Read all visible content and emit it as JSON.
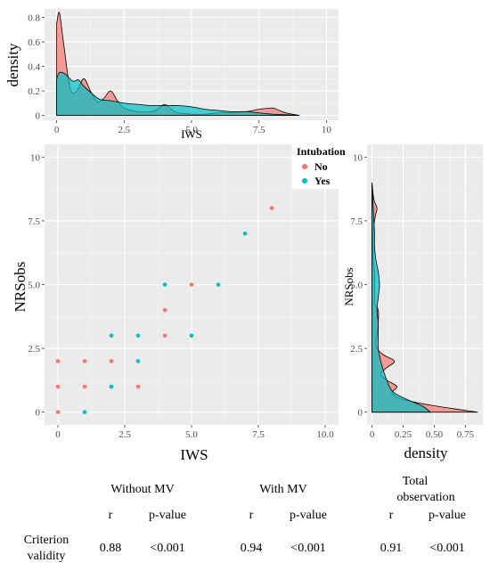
{
  "chart_data": [
    {
      "type": "area",
      "panel": "top-density",
      "xlabel": "IWS",
      "ylabel": "density",
      "xlim": [
        0,
        10
      ],
      "ylim": [
        0,
        0.85
      ],
      "xticks": [
        "0",
        "2.5",
        "5.0",
        "7.5",
        "10"
      ],
      "yticks": [
        "0",
        "0.2",
        "0.4",
        "0.6",
        "0.8"
      ],
      "grid": true,
      "series": [
        {
          "key": "No",
          "color": "#F8766D",
          "x": [
            0,
            0.1,
            0.25,
            0.5,
            0.75,
            1.0,
            1.25,
            1.5,
            1.75,
            2.0,
            2.25,
            2.5,
            3.0,
            3.5,
            3.75,
            4.0,
            4.25,
            4.5,
            5.0,
            5.5,
            6.0,
            7.0,
            7.5,
            8.0,
            8.25,
            8.5,
            9.0
          ],
          "y": [
            0.75,
            0.84,
            0.6,
            0.22,
            0.2,
            0.3,
            0.2,
            0.11,
            0.14,
            0.2,
            0.12,
            0.06,
            0.03,
            0.03,
            0.05,
            0.09,
            0.05,
            0.02,
            0.01,
            0.01,
            0.02,
            0.03,
            0.05,
            0.06,
            0.04,
            0.02,
            0
          ]
        },
        {
          "key": "Yes",
          "color": "#00BFC4",
          "x": [
            0,
            0.1,
            0.3,
            0.6,
            0.8,
            1.0,
            1.3,
            1.6,
            2.0,
            2.5,
            3.0,
            3.5,
            4.0,
            4.5,
            5.0,
            5.5,
            6.0,
            6.5,
            7.0,
            7.5,
            8.0,
            8.5,
            9.0
          ],
          "y": [
            0.3,
            0.35,
            0.34,
            0.28,
            0.29,
            0.24,
            0.18,
            0.13,
            0.12,
            0.1,
            0.09,
            0.08,
            0.08,
            0.08,
            0.07,
            0.05,
            0.04,
            0.03,
            0.03,
            0.02,
            0.01,
            0.005,
            0
          ]
        }
      ]
    },
    {
      "type": "scatter",
      "panel": "main-scatter",
      "xlabel": "IWS",
      "ylabel": "NRSobs",
      "xlim": [
        0,
        10
      ],
      "ylim": [
        0,
        10
      ],
      "xticks": [
        "0",
        "2.5",
        "5.0",
        "7.5",
        "10.0"
      ],
      "yticks": [
        "0",
        "2.5",
        "5.0",
        "7.5",
        "10"
      ],
      "grid": true,
      "legend": {
        "title": "Intubation",
        "placement": "top-right",
        "items": [
          {
            "label": "No",
            "color": "#F8766D"
          },
          {
            "label": "Yes",
            "color": "#00BFC4"
          }
        ]
      },
      "series": [
        {
          "name": "No",
          "color": "#F8766D",
          "points": [
            [
              0,
              0
            ],
            [
              0,
              1
            ],
            [
              0,
              2
            ],
            [
              1,
              1
            ],
            [
              1,
              2
            ],
            [
              2,
              1
            ],
            [
              2,
              2
            ],
            [
              3,
              1
            ],
            [
              4,
              3
            ],
            [
              4,
              4
            ],
            [
              5,
              5
            ],
            [
              8,
              8
            ]
          ]
        },
        {
          "name": "Yes",
          "color": "#00BFC4",
          "points": [
            [
              1,
              0
            ],
            [
              2,
              1
            ],
            [
              2,
              3
            ],
            [
              3,
              2
            ],
            [
              3,
              3
            ],
            [
              4,
              5
            ],
            [
              5,
              3
            ],
            [
              6,
              5
            ],
            [
              7,
              7
            ]
          ]
        }
      ]
    },
    {
      "type": "area",
      "panel": "right-density",
      "xlabel": "density",
      "ylabel": "NRSobs",
      "xlim": [
        0,
        0.9
      ],
      "ylim": [
        0,
        10
      ],
      "xticks": [
        "0",
        "0.25",
        "0.50",
        "0.75"
      ],
      "yticks": [
        "0",
        "2.5",
        "5.0",
        "7.5",
        "10"
      ],
      "grid": true,
      "series": [
        {
          "key": "No",
          "color": "#F8766D",
          "y": [
            0,
            0.25,
            0.5,
            0.75,
            1.0,
            1.25,
            1.5,
            1.75,
            2.0,
            2.25,
            2.5,
            2.75,
            3.0,
            3.5,
            4.0,
            4.25,
            4.5,
            5.0,
            5.5,
            6.0,
            7.0,
            7.5,
            7.75,
            8.0,
            8.25,
            8.5,
            9.0
          ],
          "x": [
            0.85,
            0.5,
            0.25,
            0.16,
            0.2,
            0.12,
            0.07,
            0.12,
            0.18,
            0.09,
            0.04,
            0.03,
            0.04,
            0.05,
            0.05,
            0.02,
            0.02,
            0.02,
            0.02,
            0.01,
            0.01,
            0.02,
            0.03,
            0.04,
            0.02,
            0.01,
            0
          ]
        },
        {
          "key": "Yes",
          "color": "#00BFC4",
          "y": [
            0,
            0.25,
            0.5,
            0.75,
            1.0,
            1.5,
            2.0,
            2.5,
            3.0,
            3.5,
            4.0,
            4.5,
            5.0,
            5.5,
            6.0,
            6.5,
            7.0,
            7.5,
            8.0,
            8.5,
            9.0
          ],
          "x": [
            0.47,
            0.4,
            0.28,
            0.18,
            0.14,
            0.1,
            0.07,
            0.05,
            0.05,
            0.05,
            0.04,
            0.05,
            0.06,
            0.05,
            0.03,
            0.02,
            0.02,
            0.015,
            0.01,
            0.005,
            0
          ]
        }
      ]
    },
    {
      "type": "table",
      "panel": "criterion-validity",
      "groups": [
        {
          "title": "Without MV",
          "r_label": "r",
          "p_label": "p-value",
          "r": "0.88",
          "p": "<0.001"
        },
        {
          "title": "With MV",
          "r_label": "r",
          "p_label": "p-value",
          "r": "0.94",
          "p": "<0.001"
        },
        {
          "title_line1": "Total",
          "title_line2": "observation",
          "r_label": "r",
          "p_label": "p-value",
          "r": "0.91",
          "p": "<0.001"
        }
      ],
      "row_label_line1": "Criterion",
      "row_label_line2": "validity"
    }
  ]
}
